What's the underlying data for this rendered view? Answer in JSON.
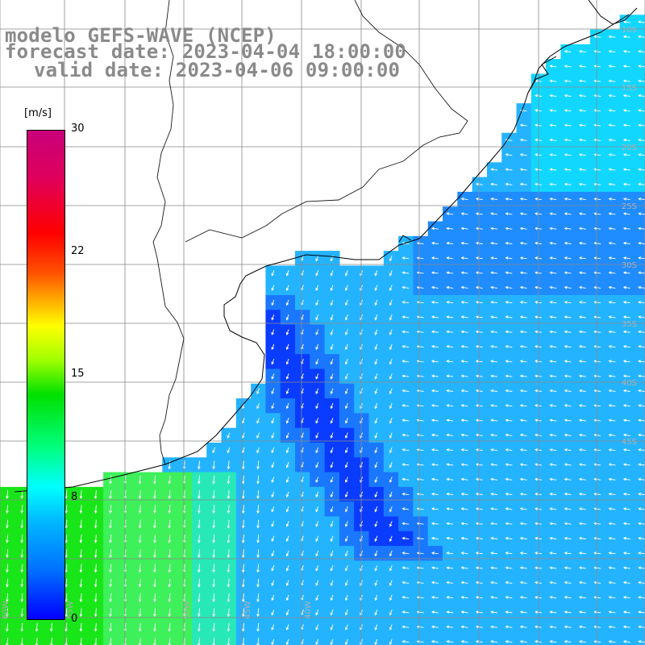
{
  "title": {
    "line1": "modelo GEFS-WAVE (NCEP)",
    "line2": "forecast date: 2023-04-04 18:00:00",
    "line3": "valid date: 2023-04-06 09:00:00"
  },
  "colorbar": {
    "unit": "[m/s]",
    "ticks": [
      "30",
      "22",
      "15",
      "8",
      "0"
    ],
    "tick_values": [
      30,
      22,
      15,
      8,
      0
    ],
    "range": [
      0,
      30
    ],
    "colors": [
      "#0000ff",
      "#00b8ff",
      "#00ffff",
      "#00e000",
      "#ffff00",
      "#ff0000",
      "#c8007a"
    ]
  },
  "map_labels": {
    "lat_right": [
      "10S",
      "15S",
      "20S",
      "25S",
      "30S",
      "35S",
      "40S",
      "45S"
    ],
    "lon_bottom": [
      "60W",
      "55W",
      "50W",
      "45W",
      "40W"
    ]
  },
  "colors": {
    "land": "#ffffff",
    "grid": "#888888",
    "coast": "#000000",
    "arrow": "#ffffff",
    "title": "#8a8a8a"
  }
}
